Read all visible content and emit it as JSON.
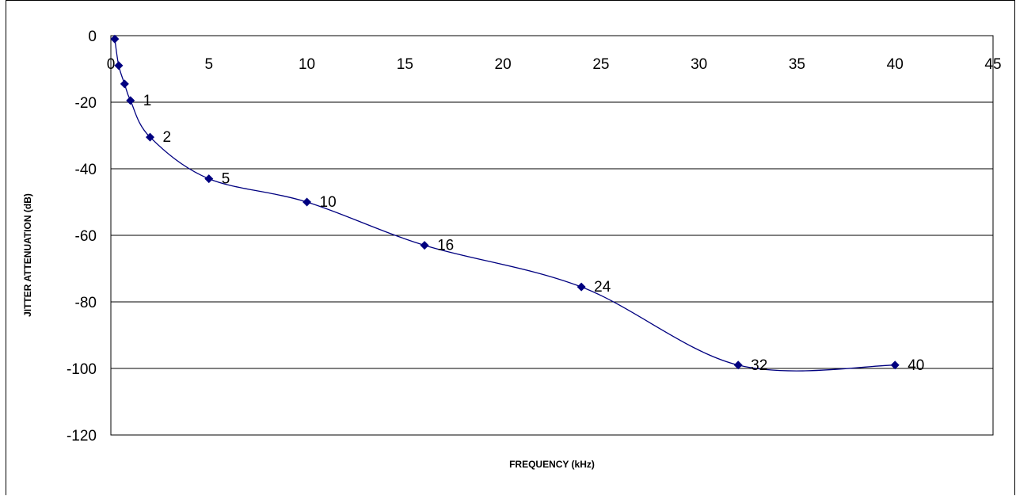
{
  "chart_data": {
    "type": "line",
    "xlabel": "FREQUENCY (kHz)",
    "ylabel": "JITTER ATTENUATION (dB)",
    "xlim": [
      0,
      45
    ],
    "ylim": [
      -120,
      0
    ],
    "x_ticks": [
      0,
      5,
      10,
      15,
      20,
      25,
      30,
      35,
      40,
      45
    ],
    "y_ticks": [
      0,
      -20,
      -40,
      -60,
      -80,
      -100,
      -120
    ],
    "grid": "horizontal",
    "legend": "none",
    "line_color": "#000080",
    "marker": "diamond",
    "series": [
      {
        "x": [
          0.2,
          0.4,
          0.7,
          1,
          2,
          5,
          10,
          16,
          24,
          32,
          40
        ],
        "y": [
          -1,
          -9,
          -14.5,
          -19.5,
          -30.5,
          -43,
          -50,
          -63,
          -75.5,
          -99,
          -99
        ],
        "point_labels": [
          "",
          "",
          "",
          "1",
          "2",
          "5",
          "10",
          "16",
          "24",
          "32",
          "40"
        ]
      }
    ]
  }
}
